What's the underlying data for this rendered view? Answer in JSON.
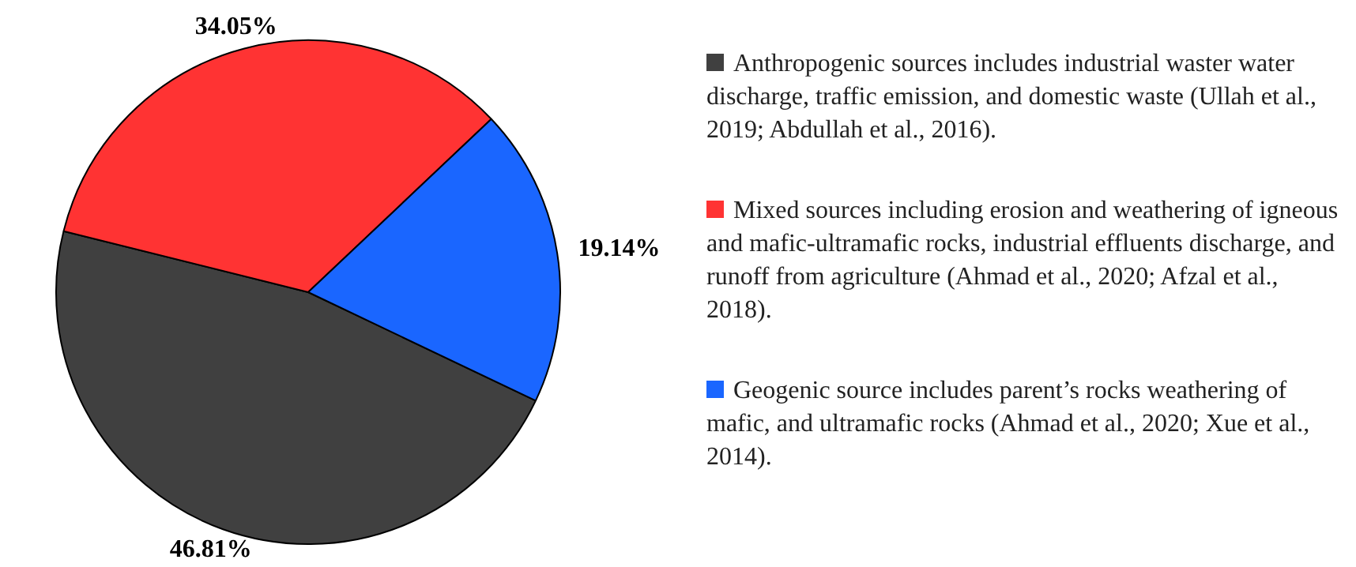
{
  "chart_data": {
    "type": "pie",
    "categories": [
      "Anthropogenic sources includes industrial waster water discharge, traffic emission, and domestic waste (Ullah et al., 2019; Abdullah et al., 2016).",
      "Mixed sources including erosion and weathering of igneous and mafic-ultramafic rocks, industrial effluents discharge, and runoff from agriculture (Ahmad et al., 2020; Afzal et al., 2018).",
      "Geogenic source includes parent’s rocks weathering of mafic, and ultramafic rocks (Ahmad et al., 2020; Xue et al., 2014)."
    ],
    "values": [
      46.81,
      34.05,
      19.14
    ],
    "colors": [
      "#404040",
      "#ff3333",
      "#1a66ff"
    ],
    "value_labels": [
      "46.81%",
      "34.05%",
      "19.14%"
    ],
    "legend": "right"
  }
}
